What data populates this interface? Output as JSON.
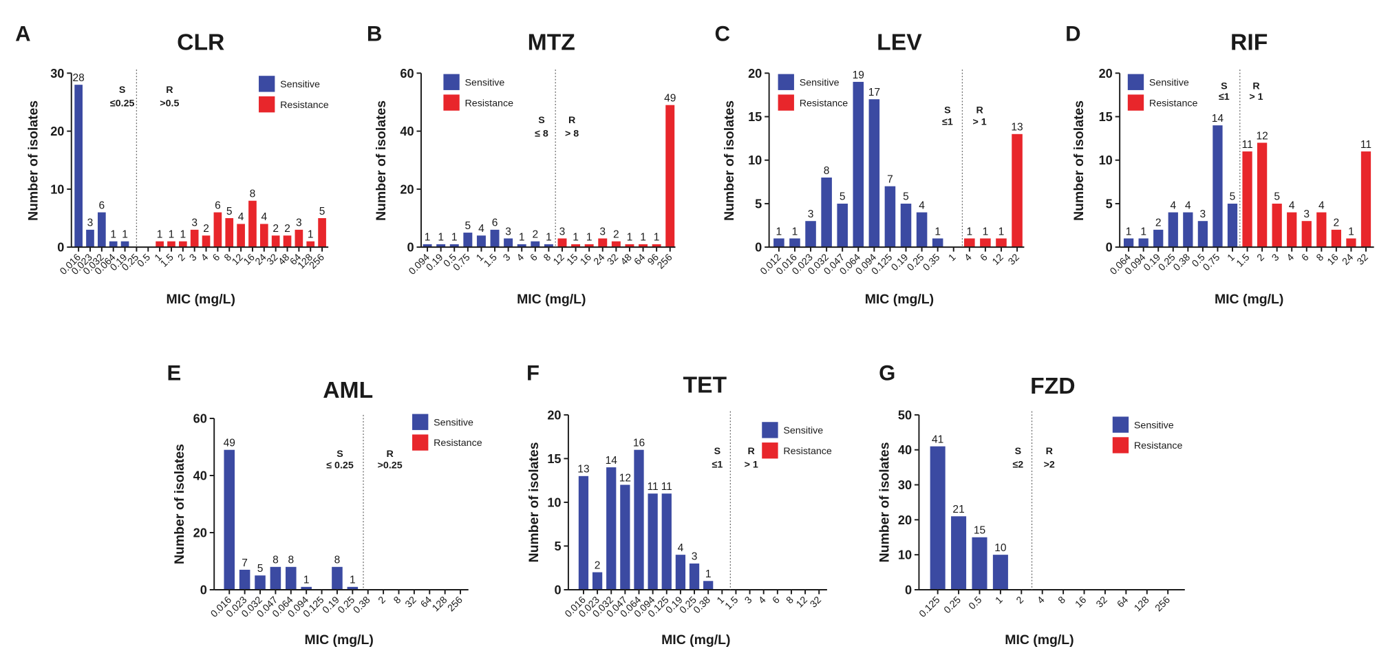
{
  "colors": {
    "sensitive": "#3b4aa2",
    "resistance": "#e8262b"
  },
  "chart_data": [
    {
      "panel": "A",
      "type": "bar",
      "title": "CLR",
      "xlabel": "MIC (mg/L)",
      "ylabel": "Number of isolates",
      "categories": [
        "0.016",
        "0.023",
        "0.032",
        "0.064",
        "0.19",
        "0.25",
        "0.5",
        "1",
        "1.5",
        "2",
        "3",
        "4",
        "6",
        "8",
        "12",
        "16",
        "24",
        "32",
        "48",
        "64",
        "128",
        "256"
      ],
      "series": [
        {
          "name": "Sensitive",
          "values": [
            28,
            3,
            6,
            1,
            1,
            0,
            0,
            0,
            0,
            0,
            0,
            0,
            0,
            0,
            0,
            0,
            0,
            0,
            0,
            0,
            0,
            0
          ]
        },
        {
          "name": "Resistance",
          "values": [
            0,
            0,
            0,
            0,
            0,
            0,
            0,
            1,
            1,
            1,
            3,
            2,
            6,
            5,
            4,
            8,
            4,
            2,
            2,
            3,
            1,
            5
          ]
        }
      ],
      "ylim": [
        0,
        30
      ],
      "yticks": [
        0,
        10,
        20,
        30
      ],
      "breakpoints": {
        "s_label": "S",
        "s_value": "≤0.25",
        "r_label": "R",
        "r_value": ">0.5"
      }
    },
    {
      "panel": "B",
      "type": "bar",
      "title": "MTZ",
      "xlabel": "MIC (mg/L)",
      "ylabel": "Number of isolates",
      "categories": [
        "0.094",
        "0.19",
        "0.5",
        "0.75",
        "1",
        "1.5",
        "3",
        "4",
        "6",
        "8",
        "12",
        "15",
        "16",
        "24",
        "32",
        "48",
        "64",
        "96",
        "256"
      ],
      "series": [
        {
          "name": "Sensitive",
          "values": [
            1,
            1,
            1,
            5,
            4,
            6,
            3,
            1,
            2,
            1,
            0,
            0,
            0,
            0,
            0,
            0,
            0,
            0,
            0
          ]
        },
        {
          "name": "Resistance",
          "values": [
            0,
            0,
            0,
            0,
            0,
            0,
            0,
            0,
            0,
            0,
            3,
            1,
            1,
            3,
            2,
            1,
            1,
            1,
            49
          ]
        }
      ],
      "ylim": [
        0,
        60
      ],
      "yticks": [
        0,
        20,
        40,
        60
      ],
      "breakpoints": {
        "s_label": "S",
        "s_value": "≤ 8",
        "r_label": "R",
        "r_value": "> 8"
      }
    },
    {
      "panel": "C",
      "type": "bar",
      "title": "LEV",
      "xlabel": "MIC (mg/L)",
      "ylabel": "Number of isolates",
      "categories": [
        "0.012",
        "0.016",
        "0.023",
        "0.032",
        "0.047",
        "0.064",
        "0.094",
        "0.125",
        "0.19",
        "0.25",
        "0.35",
        "1",
        "4",
        "6",
        "12",
        "32"
      ],
      "series": [
        {
          "name": "Sensitive",
          "values": [
            1,
            1,
            3,
            8,
            5,
            19,
            17,
            7,
            5,
            4,
            1,
            0,
            0,
            0,
            0,
            0
          ]
        },
        {
          "name": "Resistance",
          "values": [
            0,
            0,
            0,
            0,
            0,
            0,
            0,
            0,
            0,
            0,
            0,
            0,
            1,
            1,
            1,
            13
          ]
        }
      ],
      "ylim": [
        0,
        20
      ],
      "yticks": [
        0,
        5,
        10,
        15,
        20
      ],
      "breakpoints": {
        "s_label": "S",
        "s_value": "≤1",
        "r_label": "R",
        "r_value": "> 1"
      }
    },
    {
      "panel": "D",
      "type": "bar",
      "title": "RIF",
      "xlabel": "MIC (mg/L)",
      "ylabel": "Number of isolates",
      "categories": [
        "0.064",
        "0.094",
        "0.19",
        "0.25",
        "0.38",
        "0.5",
        "0.75",
        "1",
        "1.5",
        "2",
        "3",
        "4",
        "6",
        "8",
        "16",
        "24",
        "32"
      ],
      "series": [
        {
          "name": "Sensitive",
          "values": [
            1,
            1,
            2,
            4,
            4,
            3,
            14,
            5,
            0,
            0,
            0,
            0,
            0,
            0,
            0,
            0,
            0
          ]
        },
        {
          "name": "Resistance",
          "values": [
            0,
            0,
            0,
            0,
            0,
            0,
            0,
            0,
            11,
            12,
            5,
            4,
            3,
            4,
            2,
            1,
            11
          ]
        }
      ],
      "ylim": [
        0,
        20
      ],
      "yticks": [
        0,
        5,
        10,
        15,
        20
      ],
      "breakpoints": {
        "s_label": "S",
        "s_value": "≤1",
        "r_label": "R",
        "r_value": "> 1"
      }
    },
    {
      "panel": "E",
      "type": "bar",
      "title": "AML",
      "xlabel": "MIC (mg/L)",
      "ylabel": "Number of isolates",
      "categories": [
        "0.016",
        "0.023",
        "0.032",
        "0.047",
        "0.064",
        "0.094",
        "0.125",
        "0.19",
        "0.25",
        "0.38",
        "2",
        "8",
        "32",
        "64",
        "128",
        "256"
      ],
      "series": [
        {
          "name": "Sensitive",
          "values": [
            49,
            7,
            5,
            8,
            8,
            1,
            0,
            8,
            1,
            0,
            0,
            0,
            0,
            0,
            0,
            0
          ]
        },
        {
          "name": "Resistance",
          "values": [
            0,
            0,
            0,
            0,
            0,
            0,
            0,
            0,
            0,
            0,
            0,
            0,
            0,
            0,
            0,
            0
          ]
        }
      ],
      "ylim": [
        0,
        60
      ],
      "yticks": [
        0,
        20,
        40,
        60
      ],
      "breakpoints": {
        "s_label": "S",
        "s_value": "≤ 0.25",
        "r_label": "R",
        "r_value": ">0.25"
      }
    },
    {
      "panel": "F",
      "type": "bar",
      "title": "TET",
      "xlabel": "MIC (mg/L)",
      "ylabel": "Number of isolates",
      "categories": [
        "0.016",
        "0.023",
        "0.032",
        "0.047",
        "0.064",
        "0.094",
        "0.125",
        "0.19",
        "0.25",
        "0.38",
        "1",
        "1.5",
        "3",
        "4",
        "6",
        "8",
        "12",
        "32"
      ],
      "series": [
        {
          "name": "Sensitive",
          "values": [
            13,
            2,
            14,
            12,
            16,
            11,
            11,
            4,
            3,
            1,
            0,
            0,
            0,
            0,
            0,
            0,
            0,
            0
          ]
        },
        {
          "name": "Resistance",
          "values": [
            0,
            0,
            0,
            0,
            0,
            0,
            0,
            0,
            0,
            0,
            0,
            0,
            0,
            0,
            0,
            0,
            0,
            0
          ]
        }
      ],
      "ylim": [
        0,
        20
      ],
      "yticks": [
        0,
        5,
        10,
        15,
        20
      ],
      "breakpoints": {
        "s_label": "S",
        "s_value": "≤1",
        "r_label": "R",
        "r_value": "> 1"
      }
    },
    {
      "panel": "G",
      "type": "bar",
      "title": "FZD",
      "xlabel": "MIC (mg/L)",
      "ylabel": "Number of isolates",
      "categories": [
        "0.125",
        "0.25",
        "0.5",
        "1",
        "2",
        "4",
        "8",
        "16",
        "32",
        "64",
        "128",
        "256"
      ],
      "series": [
        {
          "name": "Sensitive",
          "values": [
            41,
            21,
            15,
            10,
            0,
            0,
            0,
            0,
            0,
            0,
            0,
            0
          ]
        },
        {
          "name": "Resistance",
          "values": [
            0,
            0,
            0,
            0,
            0,
            0,
            0,
            0,
            0,
            0,
            0,
            0
          ]
        }
      ],
      "ylim": [
        0,
        50
      ],
      "yticks": [
        0,
        10,
        20,
        30,
        40,
        50
      ],
      "breakpoints": {
        "s_label": "S",
        "s_value": "≤2",
        "r_label": "R",
        "r_value": ">2"
      }
    }
  ]
}
